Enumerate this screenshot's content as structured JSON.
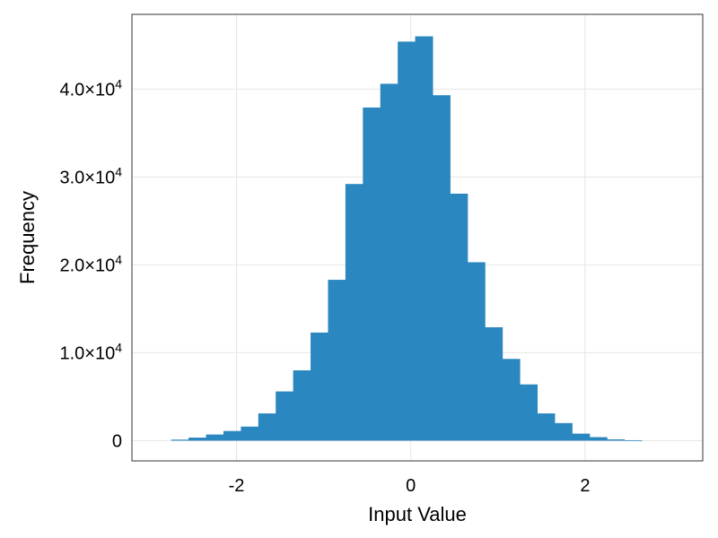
{
  "chart_data": {
    "type": "bar",
    "bin_edges": [
      -2.75,
      -2.55,
      -2.35,
      -2.15,
      -1.95,
      -1.75,
      -1.55,
      -1.35,
      -1.15,
      -0.95,
      -0.75,
      -0.55,
      -0.35,
      -0.15,
      0.05,
      0.25,
      0.45,
      0.65,
      0.85,
      1.05,
      1.25,
      1.45,
      1.65,
      1.85,
      2.05,
      2.25,
      2.45,
      2.65
    ],
    "values": [
      120,
      350,
      700,
      1100,
      1600,
      3100,
      5600,
      8000,
      12300,
      18300,
      29200,
      37900,
      40600,
      45400,
      46000,
      39300,
      28100,
      20300,
      12900,
      9300,
      6400,
      3100,
      2000,
      800,
      400,
      150,
      50
    ],
    "xlabel": "Input Value",
    "ylabel": "Frequency",
    "xlim": [
      -3.2,
      3.35
    ],
    "ylim": [
      -2300,
      48500
    ],
    "xticks": [
      {
        "value": -2,
        "label": "-2"
      },
      {
        "value": 0,
        "label": "0"
      },
      {
        "value": 2,
        "label": "2"
      }
    ],
    "yticks": [
      {
        "value": 0,
        "mantissa": "0",
        "exp": ""
      },
      {
        "value": 10000,
        "mantissa": "1.0×10",
        "exp": "4"
      },
      {
        "value": 20000,
        "mantissa": "2.0×10",
        "exp": "4"
      },
      {
        "value": 30000,
        "mantissa": "3.0×10",
        "exp": "4"
      },
      {
        "value": 40000,
        "mantissa": "4.0×10",
        "exp": "4"
      }
    ],
    "bar_color": "#2b87bf",
    "grid": true
  }
}
